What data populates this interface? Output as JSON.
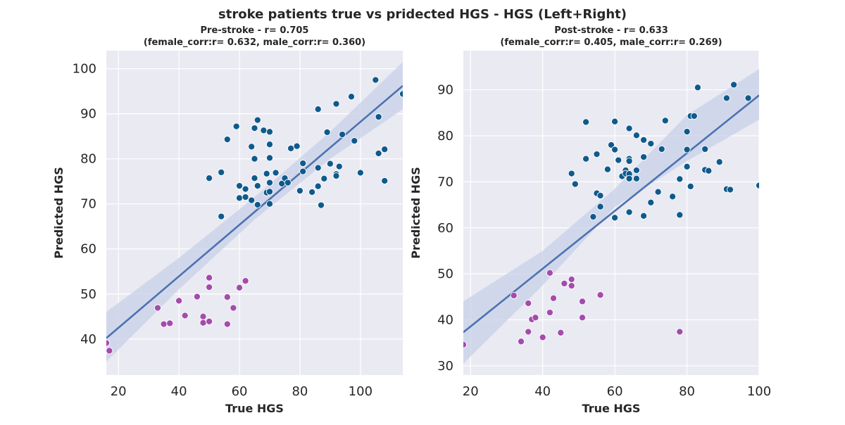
{
  "figure": {
    "suptitle": "stroke patients true vs pridected HGS - HGS (Left+Right)"
  },
  "colors": {
    "axes_bg": "#eaeaf2",
    "grid": "#ffffff",
    "male": "#0f5a8c",
    "female": "#a44bab",
    "regression": "#4c72b0",
    "ci_band": "#c8d0e8"
  },
  "chart_data": [
    {
      "type": "scatter",
      "title_line1": "Pre-stroke - r= 0.705",
      "title_line2": "(female_corr:r= 0.632, male_corr:r= 0.360)",
      "xlabel": "True HGS",
      "ylabel": "Predicted HGS",
      "xlim": [
        16,
        114
      ],
      "ylim": [
        32,
        104
      ],
      "xticks": [
        "20",
        "40",
        "60",
        "80",
        "100"
      ],
      "yticks": [
        "40",
        "50",
        "60",
        "70",
        "80",
        "90",
        "100"
      ],
      "regression": {
        "x": [
          16,
          114
        ],
        "y": [
          40.2,
          96.2
        ]
      },
      "ci_band": {
        "x": [
          16,
          40,
          65,
          90,
          114
        ],
        "lower": [
          35.0,
          51.0,
          66.5,
          80.0,
          91.0
        ],
        "upper": [
          46.0,
          58.0,
          71.5,
          86.0,
          101.5
        ]
      },
      "series": [
        {
          "group": "male",
          "points": [
            [
              50,
              75.7
            ],
            [
              54,
              77
            ],
            [
              54,
              67.2
            ],
            [
              56,
              84.3
            ],
            [
              59,
              87.2
            ],
            [
              60,
              71.3
            ],
            [
              60,
              74
            ],
            [
              62,
              71.5
            ],
            [
              62,
              73.3
            ],
            [
              64,
              82.7
            ],
            [
              64,
              70.8
            ],
            [
              65,
              86.8
            ],
            [
              65,
              75.7
            ],
            [
              65,
              80
            ],
            [
              66,
              88.6
            ],
            [
              66,
              69.8
            ],
            [
              66,
              74
            ],
            [
              68,
              86.3
            ],
            [
              69,
              76.7
            ],
            [
              69,
              72.5
            ],
            [
              70,
              86
            ],
            [
              70,
              83.2
            ],
            [
              70,
              80.2
            ],
            [
              70,
              74.7
            ],
            [
              70,
              72.7
            ],
            [
              70,
              70
            ],
            [
              72,
              76.9
            ],
            [
              74,
              74.5
            ],
            [
              75,
              75.7
            ],
            [
              76,
              74.7
            ],
            [
              77,
              82.3
            ],
            [
              79,
              82.8
            ],
            [
              80,
              72.9
            ],
            [
              81,
              79
            ],
            [
              81,
              77.2
            ],
            [
              84,
              72.6
            ],
            [
              86,
              91
            ],
            [
              86,
              78
            ],
            [
              86,
              73.9
            ],
            [
              87,
              69.7
            ],
            [
              88,
              75.6
            ],
            [
              89,
              85.9
            ],
            [
              90,
              78.9
            ],
            [
              92,
              92.2
            ],
            [
              92,
              76.6
            ],
            [
              92,
              76.2
            ],
            [
              93,
              78.3
            ],
            [
              94,
              85.4
            ],
            [
              97,
              93.8
            ],
            [
              98,
              84
            ],
            [
              100,
              76.9
            ],
            [
              105,
              97.5
            ],
            [
              106,
              89.3
            ],
            [
              106,
              81.2
            ],
            [
              108,
              82.1
            ],
            [
              108,
              75.1
            ],
            [
              114,
              94.4
            ]
          ]
        },
        {
          "group": "female",
          "points": [
            [
              16,
              39.1
            ],
            [
              17,
              37.4
            ],
            [
              33,
              46.9
            ],
            [
              35,
              43.3
            ],
            [
              37,
              43.5
            ],
            [
              40,
              48.5
            ],
            [
              42,
              45.2
            ],
            [
              46,
              49.4
            ],
            [
              48,
              45
            ],
            [
              48,
              43.6
            ],
            [
              50,
              53.6
            ],
            [
              50,
              51.5
            ],
            [
              50,
              43.9
            ],
            [
              56,
              49.3
            ],
            [
              56,
              43.3
            ],
            [
              58,
              46.9
            ],
            [
              60,
              51.4
            ],
            [
              62,
              52.9
            ]
          ]
        }
      ]
    },
    {
      "type": "scatter",
      "title_line1": "Post-stroke - r= 0.633",
      "title_line2": "(female_corr:r= 0.405, male_corr:r= 0.269)",
      "xlabel": "True HGS",
      "ylabel": "Predicted HGS",
      "xlim": [
        18,
        100
      ],
      "ylim": [
        28,
        98.5
      ],
      "xticks": [
        "20",
        "40",
        "60",
        "80",
        "100"
      ],
      "yticks": [
        "30",
        "40",
        "50",
        "60",
        "70",
        "80",
        "90"
      ],
      "regression": {
        "x": [
          18,
          100
        ],
        "y": [
          37.3,
          88.8
        ]
      },
      "ci_band": {
        "x": [
          18,
          40,
          60,
          80,
          100
        ],
        "lower": [
          30.5,
          47.5,
          64.5,
          74.5,
          83.5
        ],
        "upper": [
          44.0,
          55.0,
          68.5,
          84.5,
          94.5
        ]
      },
      "series": [
        {
          "group": "male",
          "points": [
            [
              48,
              71.8
            ],
            [
              49,
              69.5
            ],
            [
              52,
              83
            ],
            [
              52,
              75
            ],
            [
              54,
              62.4
            ],
            [
              55,
              76
            ],
            [
              55,
              67.5
            ],
            [
              56,
              67
            ],
            [
              56,
              64.6
            ],
            [
              58,
              72.7
            ],
            [
              59,
              78
            ],
            [
              60,
              83.1
            ],
            [
              60,
              77
            ],
            [
              60,
              62.2
            ],
            [
              61,
              74.7
            ],
            [
              62,
              71.2
            ],
            [
              63,
              72.5
            ],
            [
              63,
              71.8
            ],
            [
              64,
              81.6
            ],
            [
              64,
              75
            ],
            [
              64,
              74.5
            ],
            [
              64,
              71.7
            ],
            [
              64,
              70.7
            ],
            [
              64,
              63.4
            ],
            [
              66,
              80.1
            ],
            [
              66,
              72.5
            ],
            [
              66,
              70.7
            ],
            [
              68,
              79.1
            ],
            [
              68,
              75.4
            ],
            [
              68,
              62.6
            ],
            [
              70,
              78.3
            ],
            [
              70,
              65.5
            ],
            [
              72,
              67.8
            ],
            [
              73,
              77.1
            ],
            [
              74,
              83.3
            ],
            [
              76,
              66.8
            ],
            [
              78,
              70.6
            ],
            [
              78,
              62.8
            ],
            [
              80,
              80.9
            ],
            [
              80,
              77
            ],
            [
              80,
              73.3
            ],
            [
              81,
              84.3
            ],
            [
              81,
              69
            ],
            [
              82,
              84.3
            ],
            [
              83,
              90.5
            ],
            [
              85,
              77.1
            ],
            [
              85,
              72.6
            ],
            [
              86,
              72.4
            ],
            [
              89,
              74.3
            ],
            [
              91,
              88.2
            ],
            [
              91,
              68.4
            ],
            [
              92,
              68.3
            ],
            [
              93,
              91.1
            ],
            [
              97,
              88.2
            ],
            [
              100,
              69.2
            ]
          ]
        },
        {
          "group": "female",
          "points": [
            [
              18,
              34.6
            ],
            [
              32,
              45.3
            ],
            [
              34,
              35.3
            ],
            [
              36,
              43.6
            ],
            [
              36,
              37.4
            ],
            [
              37,
              40.1
            ],
            [
              38,
              40.5
            ],
            [
              40,
              36.2
            ],
            [
              42,
              50.2
            ],
            [
              42,
              41.6
            ],
            [
              43,
              44.7
            ],
            [
              45,
              37.2
            ],
            [
              46,
              47.9
            ],
            [
              48,
              48.8
            ],
            [
              48,
              47.4
            ],
            [
              51,
              44
            ],
            [
              51,
              40.5
            ],
            [
              56,
              45.4
            ],
            [
              78,
              37.4
            ]
          ]
        }
      ]
    }
  ]
}
